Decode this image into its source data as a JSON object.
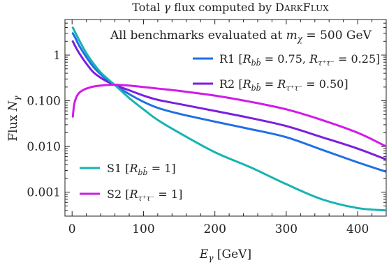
{
  "chart_data": {
    "type": "line",
    "title": "Total γ flux computed by DARKFLUX",
    "annotation": "All benchmarks evaluated at m_χ = 500 GeV",
    "xlabel": "E_γ [GeV]",
    "ylabel": "Flux N_γ",
    "xlim": [
      -10,
      440
    ],
    "ylim": [
      0.0003,
      6
    ],
    "y_scale": "log",
    "x_ticks": [
      0,
      100,
      200,
      300,
      400
    ],
    "x_tick_labels": [
      "0",
      "100",
      "200",
      "300",
      "400"
    ],
    "y_ticks": [
      1,
      0.1,
      0.01,
      0.001
    ],
    "y_tick_labels": [
      "1",
      "0.100",
      "0.010",
      "0.001"
    ],
    "legend_top_right": [
      "R1 [R_bb̄ = 0.75, R_τ⁺τ⁻ = 0.25]",
      "R2 [R_bb̄ = R_τ⁺τ⁻ = 0.50]"
    ],
    "legend_bottom_left": [
      "S1 [R_bb̄ = 1]",
      "S2 [R_τ⁺τ⁻ = 1]"
    ],
    "series": [
      {
        "name": "R1 [R_bb̄ = 0.75, R_τ⁺τ⁻ = 0.25]",
        "color": "#1f6fe5",
        "x": [
          1,
          5,
          10,
          20,
          30,
          40,
          50,
          60,
          80,
          100,
          120,
          150,
          200,
          250,
          300,
          350,
          400,
          440
        ],
        "y": [
          3.0,
          2.3,
          1.6,
          0.9,
          0.55,
          0.38,
          0.28,
          0.22,
          0.14,
          0.095,
          0.07,
          0.052,
          0.035,
          0.024,
          0.016,
          0.0085,
          0.0045,
          0.0028
        ]
      },
      {
        "name": "R2 [R_bb̄ = R_τ⁺τ⁻ = 0.50]",
        "color": "#7a1fe0",
        "x": [
          1,
          5,
          10,
          20,
          30,
          40,
          50,
          60,
          80,
          100,
          120,
          150,
          200,
          250,
          300,
          350,
          400,
          440
        ],
        "y": [
          2.0,
          1.5,
          1.1,
          0.65,
          0.42,
          0.32,
          0.26,
          0.22,
          0.17,
          0.13,
          0.105,
          0.085,
          0.06,
          0.042,
          0.028,
          0.016,
          0.009,
          0.0052
        ]
      },
      {
        "name": "S1 [R_bb̄ = 1]",
        "color": "#17b3b3",
        "x": [
          1,
          5,
          10,
          20,
          30,
          40,
          50,
          60,
          80,
          100,
          120,
          150,
          200,
          250,
          300,
          350,
          400,
          440
        ],
        "y": [
          4.0,
          3.0,
          2.1,
          1.1,
          0.65,
          0.42,
          0.3,
          0.22,
          0.115,
          0.065,
          0.038,
          0.02,
          0.0075,
          0.0035,
          0.0015,
          0.0007,
          0.00045,
          0.0004
        ]
      },
      {
        "name": "S2 [R_τ⁺τ⁻ = 1]",
        "color": "#d11aea",
        "x": [
          1,
          3,
          6,
          10,
          15,
          20,
          30,
          40,
          50,
          60,
          80,
          100,
          120,
          150,
          200,
          250,
          300,
          350,
          400,
          440
        ],
        "y": [
          0.045,
          0.085,
          0.12,
          0.15,
          0.17,
          0.185,
          0.205,
          0.215,
          0.222,
          0.225,
          0.215,
          0.2,
          0.185,
          0.165,
          0.13,
          0.095,
          0.065,
          0.038,
          0.02,
          0.01
        ]
      }
    ]
  }
}
